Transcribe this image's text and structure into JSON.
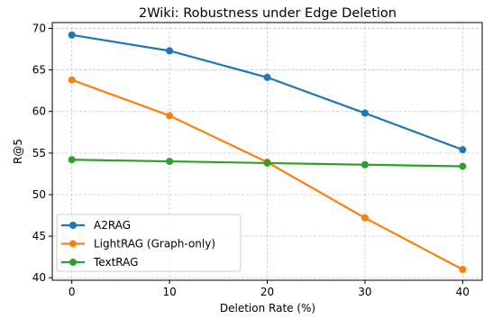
{
  "chart_data": {
    "type": "line",
    "title": "2Wiki: Robustness under Edge Deletion",
    "xlabel": "Deletion Rate (%)",
    "ylabel": "R@5",
    "x": [
      0,
      10,
      20,
      30,
      40
    ],
    "xlim": [
      -2,
      42
    ],
    "ylim": [
      39.7,
      70.7
    ],
    "xticks": [
      "0",
      "10",
      "20",
      "30",
      "40"
    ],
    "yticks": [
      "40",
      "45",
      "50",
      "55",
      "60",
      "65",
      "70"
    ],
    "grid": true,
    "legend_position": "lower-left",
    "series": [
      {
        "name": "A2RAG",
        "color": "#1f77b4",
        "values": [
          69.2,
          67.3,
          64.1,
          59.8,
          55.4
        ]
      },
      {
        "name": "LightRAG (Graph-only)",
        "color": "#ff7f0e",
        "values": [
          63.8,
          59.5,
          53.9,
          47.2,
          41.0
        ]
      },
      {
        "name": "TextRAG",
        "color": "#2ca02c",
        "values": [
          54.2,
          54.0,
          53.8,
          53.6,
          53.4
        ]
      }
    ]
  }
}
